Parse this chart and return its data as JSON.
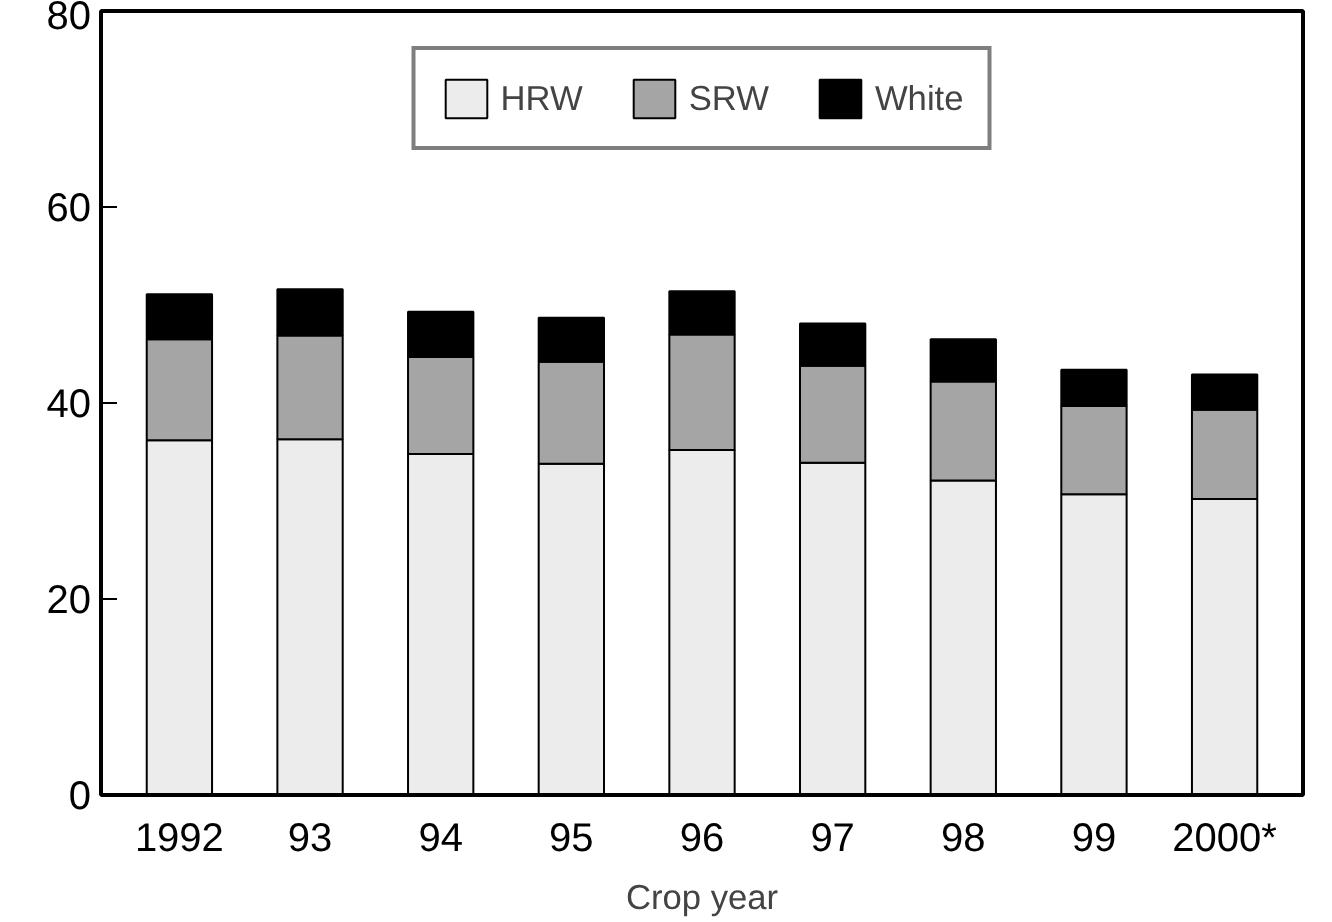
{
  "chart_data": {
    "type": "bar",
    "stacked": true,
    "xlabel": "Crop year",
    "categories": [
      "1992",
      "93",
      "94",
      "95",
      "96",
      "97",
      "98",
      "99",
      "2000*"
    ],
    "series": [
      {
        "name": "HRW",
        "color": "#ececec",
        "values": [
          36.2,
          36.3,
          34.8,
          33.8,
          35.2,
          33.9,
          32.1,
          30.7,
          30.2
        ]
      },
      {
        "name": "SRW",
        "color": "#a5a5a5",
        "values": [
          10.3,
          10.6,
          9.9,
          10.4,
          11.8,
          9.9,
          10.1,
          9.0,
          9.1
        ]
      },
      {
        "name": "White",
        "color": "#000000",
        "values": [
          4.6,
          4.7,
          4.6,
          4.5,
          4.4,
          4.3,
          4.3,
          3.7,
          3.6
        ]
      }
    ],
    "ylim": [
      0,
      80
    ],
    "yticks": [
      0,
      20,
      40,
      60,
      80
    ],
    "grid": false,
    "legend": "top"
  }
}
